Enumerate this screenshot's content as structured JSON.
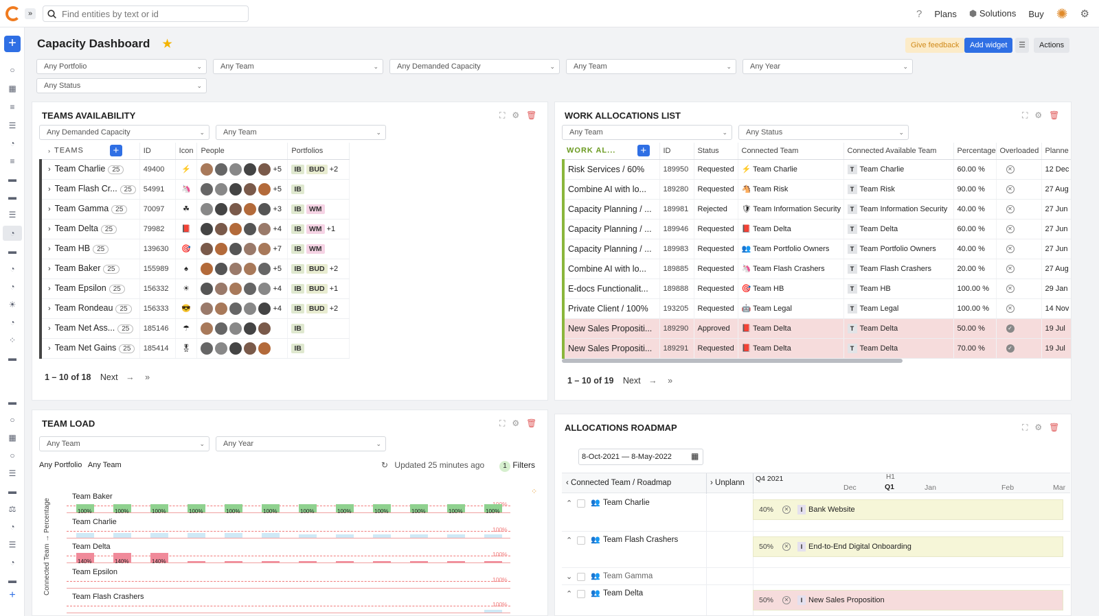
{
  "topbar": {
    "search_placeholder": "Find entities by text or id",
    "help": "?",
    "plans": "Plans",
    "solutions": "Solutions",
    "buy": "Buy"
  },
  "page": {
    "title": "Capacity Dashboard",
    "feedback": "Give feedback",
    "add_widget": "Add widget",
    "actions": "Actions"
  },
  "filters": [
    "Any Portfolio",
    "Any Team",
    "Any Demanded Capacity",
    "Any Team",
    "Any Year",
    "Any Status"
  ],
  "teams_availability": {
    "title": "TEAMS AVAILABILITY",
    "filters": [
      "Any Demanded Capacity",
      "Any Team"
    ],
    "columns": [
      "TEAMS",
      "ID",
      "Icon",
      "People",
      "Portfolios"
    ],
    "rows": [
      {
        "name": "Team Charlie",
        "count": "25",
        "id": "49400",
        "icon": "⚡",
        "people_more": "+5",
        "tags": [
          "IB",
          "BUD"
        ],
        "more": "+2"
      },
      {
        "name": "Team Flash Cr...",
        "count": "25",
        "id": "54991",
        "icon": "🦄",
        "people_more": "+5",
        "tags": [
          "IB"
        ],
        "more": ""
      },
      {
        "name": "Team Gamma",
        "count": "25",
        "id": "70097",
        "icon": "☘",
        "people_more": "+3",
        "tags": [
          "IB",
          "WM"
        ],
        "more": ""
      },
      {
        "name": "Team Delta",
        "count": "25",
        "id": "79982",
        "icon": "📕",
        "people_more": "+4",
        "tags": [
          "IB",
          "WM"
        ],
        "more": "+1"
      },
      {
        "name": "Team HB",
        "count": "25",
        "id": "139630",
        "icon": "🎯",
        "people_more": "+7",
        "tags": [
          "IB",
          "WM"
        ],
        "more": ""
      },
      {
        "name": "Team Baker",
        "count": "25",
        "id": "155989",
        "icon": "♠",
        "people_more": "+5",
        "tags": [
          "IB",
          "BUD"
        ],
        "more": "+2"
      },
      {
        "name": "Team Epsilon",
        "count": "25",
        "id": "156332",
        "icon": "☀",
        "people_more": "+4",
        "tags": [
          "IB",
          "BUD"
        ],
        "more": "+1"
      },
      {
        "name": "Team Rondeau",
        "count": "25",
        "id": "156333",
        "icon": "😎",
        "people_more": "+4",
        "tags": [
          "IB",
          "BUD"
        ],
        "more": "+2"
      },
      {
        "name": "Team Net Ass...",
        "count": "25",
        "id": "185146",
        "icon": "☂",
        "people_more": "",
        "tags": [
          "IB"
        ],
        "more": ""
      },
      {
        "name": "Team Net Gains",
        "count": "25",
        "id": "185414",
        "icon": "🎖",
        "people_more": "",
        "tags": [
          "IB"
        ],
        "more": ""
      }
    ],
    "pager": {
      "range": "1 – 10 of 18",
      "next": "Next"
    }
  },
  "work_allocations": {
    "title": "WORK ALLOCATIONS LIST",
    "filters": [
      "Any Team",
      "Any Status"
    ],
    "columns": [
      "WORK AL...",
      "ID",
      "Status",
      "Connected Team",
      "Connected Available Team",
      "Percentage",
      "Overloaded",
      "Planne"
    ],
    "rows": [
      {
        "name": "Risk Services / 60%",
        "id": "189950",
        "status": "Requested",
        "team": "Team Charlie",
        "icon": "⚡",
        "avail": "Team Charlie",
        "pct": "60.00 %",
        "over": false,
        "date": "12 Dec",
        "red": false
      },
      {
        "name": "Combine AI with lo...",
        "id": "189280",
        "status": "Requested",
        "team": "Team Risk",
        "icon": "🐴",
        "avail": "Team Risk",
        "pct": "90.00 %",
        "over": false,
        "date": "27 Aug",
        "red": false
      },
      {
        "name": "Capacity Planning / ...",
        "id": "189981",
        "status": "Rejected",
        "team": "Team Information Security",
        "icon": "🛡",
        "avail": "Team Information Security",
        "pct": "40.00 %",
        "over": false,
        "date": "27 Jun",
        "red": false
      },
      {
        "name": "Capacity Planning / ...",
        "id": "189946",
        "status": "Requested",
        "team": "Team Delta",
        "icon": "📕",
        "avail": "Team Delta",
        "pct": "60.00 %",
        "over": false,
        "date": "27 Jun",
        "red": false
      },
      {
        "name": "Capacity Planning / ...",
        "id": "189983",
        "status": "Requested",
        "team": "Team Portfolio Owners",
        "icon": "👥",
        "avail": "Team Portfolio Owners",
        "pct": "40.00 %",
        "over": false,
        "date": "27 Jun",
        "red": false
      },
      {
        "name": "Combine AI with lo...",
        "id": "189885",
        "status": "Requested",
        "team": "Team Flash Crashers",
        "icon": "🦄",
        "avail": "Team Flash Crashers",
        "pct": "20.00 %",
        "over": false,
        "date": "27 Aug",
        "red": false
      },
      {
        "name": "E-docs Functionalit...",
        "id": "189888",
        "status": "Requested",
        "team": "Team HB",
        "icon": "🎯",
        "avail": "Team HB",
        "pct": "100.00 %",
        "over": false,
        "date": "29 Jan",
        "red": false
      },
      {
        "name": "Private Client / 100%",
        "id": "193205",
        "status": "Requested",
        "team": "Team Legal",
        "icon": "🤖",
        "avail": "Team Legal",
        "pct": "100.00 %",
        "over": false,
        "date": "14 Nov",
        "red": false
      },
      {
        "name": "New Sales Propositi...",
        "id": "189290",
        "status": "Approved",
        "team": "Team Delta",
        "icon": "📕",
        "avail": "Team Delta",
        "pct": "50.00 %",
        "over": true,
        "date": "19 Jul",
        "red": true
      },
      {
        "name": "New Sales Propositi...",
        "id": "189291",
        "status": "Requested",
        "team": "Team Delta",
        "icon": "📕",
        "avail": "Team Delta",
        "pct": "70.00 %",
        "over": true,
        "date": "19 Jul",
        "red": true
      }
    ],
    "pager": {
      "range": "1 – 10 of 19",
      "next": "Next"
    }
  },
  "team_load": {
    "title": "TEAM LOAD",
    "filters": [
      "Any Team",
      "Any Year"
    ],
    "crumbs": "Any Portfolio   Any Team",
    "updated": "Updated 25 minutes ago",
    "filter_count": "1",
    "filters_label": "Filters",
    "y_axis": "Connected Team → Percentage",
    "threshold_label": "100%",
    "teams": [
      {
        "name": "Team Baker",
        "values": [
          100,
          100,
          100,
          100,
          100,
          100,
          100,
          100,
          100,
          100,
          100,
          100
        ],
        "color": "#8fd18f"
      },
      {
        "name": "Team Charlie",
        "values": [
          60,
          60,
          60,
          60,
          60,
          60,
          40,
          40,
          40,
          40,
          40,
          40
        ],
        "color": "#cfe9f6"
      },
      {
        "name": "Team Delta",
        "values": [
          140,
          140,
          140,
          20,
          20,
          20,
          20,
          20,
          20,
          20,
          20,
          20
        ],
        "color": "#f08a9a"
      },
      {
        "name": "Team Epsilon",
        "values": [
          0,
          0,
          0,
          0,
          0,
          0,
          0,
          0,
          0,
          0,
          0,
          0
        ],
        "color": "#cfe9f6"
      },
      {
        "name": "Team Flash Crashers",
        "values": [
          0,
          0,
          0,
          0,
          0,
          0,
          0,
          0,
          0,
          0,
          0,
          30
        ],
        "color": "#cfe9f6"
      }
    ]
  },
  "roadmap": {
    "title": "ALLOCATIONS ROADMAP",
    "date_range": "8-Oct-2021 — 8-May-2022",
    "col_team": "Connected Team / Roadmap",
    "col_unplanned": "Unplann",
    "quarter": "Q4 2021",
    "h1": "H1",
    "q1": "Q1",
    "months": [
      "Dec",
      "Jan",
      "Feb",
      "Mar"
    ],
    "rows": [
      {
        "team": "Team Charlie",
        "pct": "40%",
        "item": "Bank Website",
        "collapsed": false
      },
      {
        "team": "Team Flash Crashers",
        "pct": "50%",
        "item": "End-to-End Digital Onboarding",
        "collapsed": false
      },
      {
        "team": "Team Gamma",
        "pct": "",
        "item": "",
        "collapsed": true
      },
      {
        "team": "Team Delta",
        "pct": "50%",
        "item": "New Sales Proposition",
        "collapsed": false
      }
    ]
  }
}
